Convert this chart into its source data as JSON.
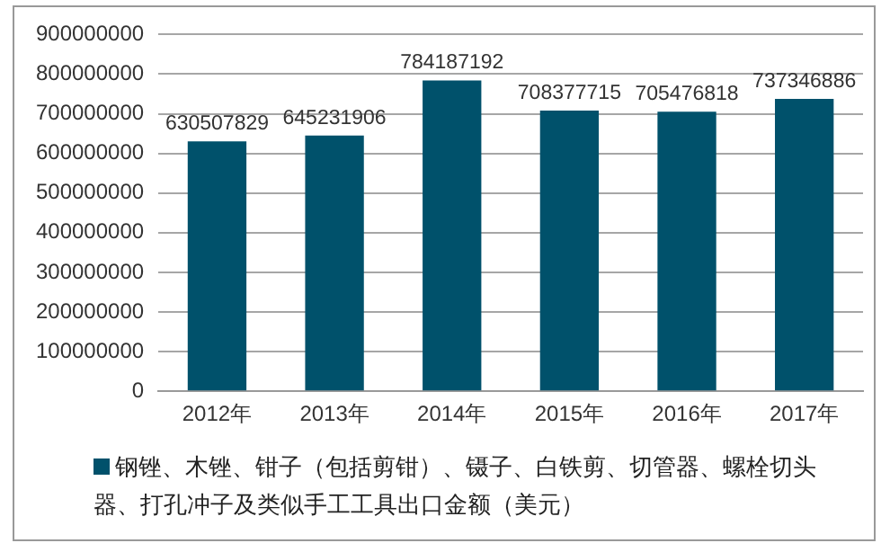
{
  "chart_data": {
    "type": "bar",
    "categories": [
      "2012年",
      "2013年",
      "2014年",
      "2015年",
      "2016年",
      "2017年"
    ],
    "series": [
      {
        "name": "钢锉、木锉、钳子（包括剪钳）、镊子、白铁剪、切管器、螺栓切头器、打孔冲子及类似手工工具出口金额（美元）",
        "color": "#00516b",
        "values": [
          630507829,
          645231906,
          784187192,
          708377715,
          705476818,
          737346886
        ]
      }
    ],
    "ylim": [
      0,
      900000000
    ],
    "yticks": [
      0,
      100000000,
      200000000,
      300000000,
      400000000,
      500000000,
      600000000,
      700000000,
      800000000,
      900000000
    ],
    "grid": "y",
    "legend": "bottom",
    "data_labels": true
  }
}
